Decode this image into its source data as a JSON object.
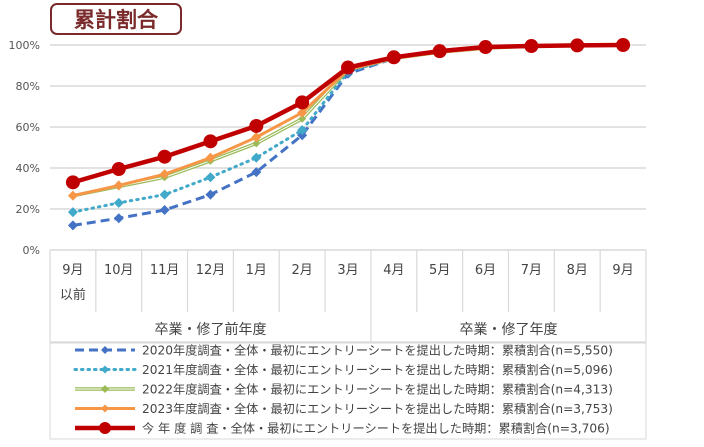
{
  "chart_data": {
    "type": "line",
    "title": "累計割合",
    "categories": [
      "9月\n以前",
      "10月",
      "11月",
      "12月",
      "1月",
      "2月",
      "3月",
      "4月",
      "5月",
      "6月",
      "7月",
      "8月",
      "9月"
    ],
    "groups": [
      {
        "label": "卒業・修了前年度",
        "span": 7
      },
      {
        "label": "卒業・修了年度",
        "span": 6
      }
    ],
    "ylim": [
      0,
      100
    ],
    "yticks": [
      "0%",
      "20%",
      "40%",
      "60%",
      "80%",
      "100%"
    ],
    "grid": true,
    "legend_position": "bottom",
    "series": [
      {
        "name": "2020年度調査・全体・最初にエントリーシートを提出した時期：累積割合(n=5,550)",
        "color": "#4472c4",
        "style": "dashed",
        "values": [
          12,
          15.5,
          19.5,
          27,
          38,
          56,
          86,
          93.5,
          96.5,
          98.5,
          99.5,
          99.8,
          100
        ]
      },
      {
        "name": "2021年度調査・全体・最初にエントリーシートを提出した時期：累積割合(n=5,096)",
        "color": "#41a9c9",
        "style": "dotted",
        "values": [
          18.5,
          23,
          27,
          35.5,
          45,
          58.5,
          87,
          93.5,
          96.5,
          98.5,
          99.5,
          99.8,
          100
        ]
      },
      {
        "name": "2022年度調査・全体・最初にエントリーシートを提出した時期：累積割合(n=4,313)",
        "color": "#9bbb59",
        "style": "double",
        "values": [
          26.5,
          31,
          35.5,
          43.5,
          52,
          64,
          88,
          93.5,
          96.5,
          98.5,
          99.5,
          99.8,
          100
        ]
      },
      {
        "name": "2023年度調査・全体・最初にエントリーシートを提出した時期：累積割合(n=3,753)",
        "color": "#f79646",
        "style": "solid",
        "values": [
          26.5,
          31.5,
          37,
          45,
          55,
          67,
          88,
          93.5,
          96.5,
          98.5,
          99.5,
          99.8,
          100
        ]
      },
      {
        "name": "今 年 度 調 査・全体・最初にエントリーシートを提出した時期：累積割合(n=3,706)",
        "color": "#c00000",
        "style": "bold",
        "values": [
          33,
          39.5,
          45.5,
          53,
          60.5,
          72,
          89,
          94,
          97,
          99,
          99.5,
          99.8,
          100
        ]
      }
    ]
  }
}
